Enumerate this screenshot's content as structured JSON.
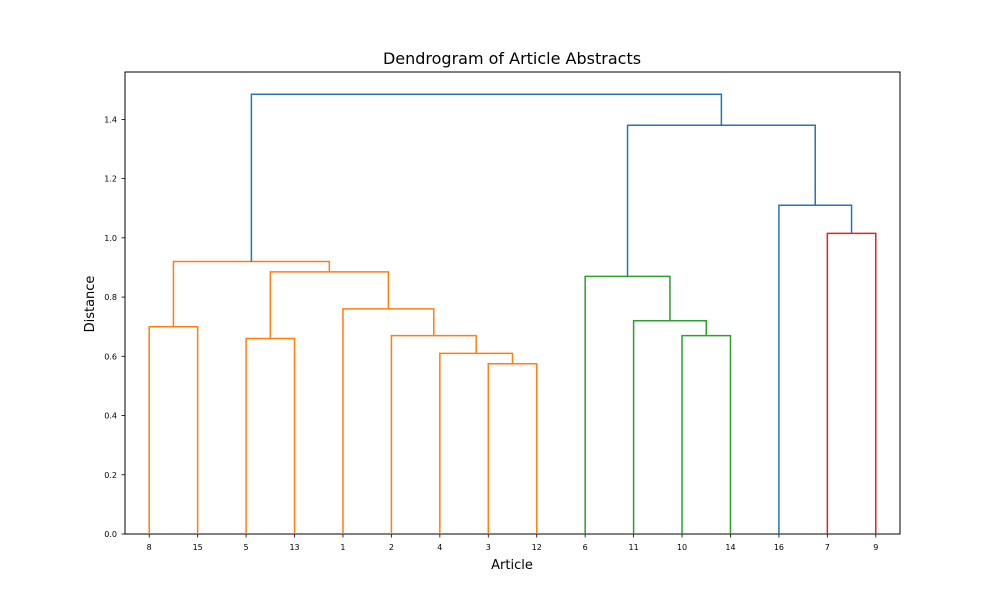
{
  "chart_data": {
    "type": "dendrogram",
    "title": "Dendrogram of Article Abstracts",
    "xlabel": "Article",
    "ylabel": "Distance",
    "ylim": [
      0.0,
      1.56
    ],
    "yticks": [
      0.0,
      0.2,
      0.4,
      0.6,
      0.8,
      1.0,
      1.2,
      1.4
    ],
    "ytick_labels": [
      "0.0",
      "0.2",
      "0.4",
      "0.6",
      "0.8",
      "1.0",
      "1.2",
      "1.4"
    ],
    "leaves": [
      "8",
      "15",
      "5",
      "13",
      "1",
      "2",
      "4",
      "3",
      "12",
      "6",
      "11",
      "10",
      "14",
      "16",
      "7",
      "9"
    ],
    "grid": false,
    "colors": {
      "orange": "#ff7f0e",
      "green": "#2ca02c",
      "red": "#d62728",
      "blue": "#1f77b4"
    },
    "merges": [
      {
        "left": "8",
        "right": "15",
        "height": 0.7,
        "color": "orange"
      },
      {
        "left": "5",
        "right": "13",
        "height": 0.66,
        "color": "orange"
      },
      {
        "left": "3",
        "right": "12",
        "height": 0.575,
        "color": "orange"
      },
      {
        "left": "4",
        "right": "3+12",
        "height": 0.61,
        "color": "orange"
      },
      {
        "left": "2",
        "right": "4+3+12",
        "height": 0.67,
        "color": "orange"
      },
      {
        "left": "1",
        "right": "2+4+3+12",
        "height": 0.76,
        "color": "orange"
      },
      {
        "left": "5+13",
        "right": "1+2+4+3+12",
        "height": 0.885,
        "color": "orange"
      },
      {
        "left": "8+15",
        "right": "5+13+1+2+4+3+12",
        "height": 0.92,
        "color": "orange"
      },
      {
        "left": "10",
        "right": "14",
        "height": 0.67,
        "color": "green"
      },
      {
        "left": "11",
        "right": "10+14",
        "height": 0.72,
        "color": "green"
      },
      {
        "left": "6",
        "right": "11+10+14",
        "height": 0.87,
        "color": "green"
      },
      {
        "left": "7",
        "right": "9",
        "height": 1.015,
        "color": "red"
      },
      {
        "left": "16",
        "right": "7+9",
        "height": 1.11,
        "color": "blue"
      },
      {
        "left": "6+11+10+14",
        "right": "16+7+9",
        "height": 1.38,
        "color": "blue"
      },
      {
        "left": "orange-cluster",
        "right": "right-cluster",
        "height": 1.485,
        "color": "blue"
      }
    ]
  }
}
